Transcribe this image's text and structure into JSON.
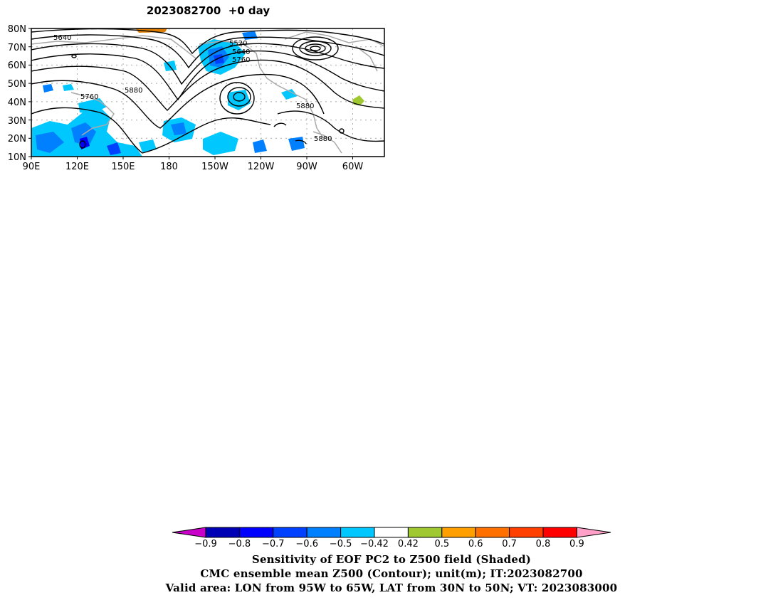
{
  "title": "2023082700  +0 day",
  "map": {
    "lat_labels": [
      "80N",
      "70N",
      "60N",
      "50N",
      "40N",
      "30N",
      "20N",
      "10N"
    ],
    "lon_labels": [
      "90E",
      "120E",
      "150E",
      "180",
      "150W",
      "120W",
      "90W",
      "60W"
    ],
    "contour_labels": [
      "5640",
      "5520",
      "5640",
      "5760",
      "5760",
      "5880",
      "5880",
      "5880"
    ],
    "colors": {
      "contour": "#000000",
      "coast": "#a9a9a9",
      "grid": "#a9a9a9",
      "shade_light": "#00c8ff",
      "shade_mid": "#0080ff",
      "shade_dark": "#0000ff",
      "shade_positive_a": "#e08000",
      "shade_positive_b": "#a0c830"
    }
  },
  "colorbar": {
    "labels": [
      "-0.9",
      "-0.8",
      "-0.7",
      "-0.6",
      "-0.5",
      "-0.42",
      "0.42",
      "0.5",
      "0.6",
      "0.7",
      "0.8",
      "0.9"
    ],
    "colors": [
      "#c800c8",
      "#0000b4",
      "#0000ff",
      "#0040ff",
      "#0080ff",
      "#00c8ff",
      "#ffffff",
      "#a0c830",
      "#ffa000",
      "#ff7000",
      "#ff4000",
      "#ff0000",
      "#ffa0c8"
    ]
  },
  "captions": [
    "Sensitivity of EOF PC2 to Z500 field (Shaded)",
    "CMC ensemble mean Z500 (Contour); unit(m); IT:2023082700",
    "Valid area: LON from 95W to 65W, LAT from 30N to 50N; VT: 2023083000"
  ]
}
